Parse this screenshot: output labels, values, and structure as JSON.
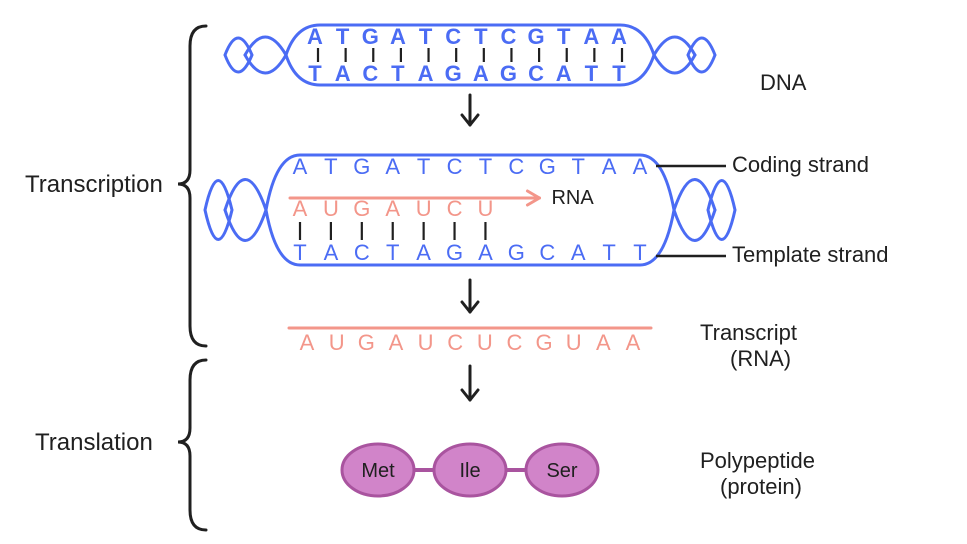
{
  "colors": {
    "dna": "#4b6cf4",
    "rna": "#f3968a",
    "rna_line": "#f3968a",
    "text": "#202020",
    "tick": "#202020",
    "protein_fill": "#d184c9",
    "protein_stroke": "#a9549f",
    "arrow": "#202020",
    "bracket": "#202020"
  },
  "labels": {
    "dna": "DNA",
    "rna": "RNA",
    "coding_strand": "Coding strand",
    "template_strand": "Template strand",
    "transcription": "Transcription",
    "translation": "Translation",
    "transcript_l1": "Transcript",
    "transcript_l2": "(RNA)",
    "polypeptide_l1": "Polypeptide",
    "polypeptide_l2": "(protein)"
  },
  "font_sizes": {
    "label": 22,
    "section": 24,
    "seq": 22,
    "protein": 20
  },
  "dna": {
    "top": "ATGATCTCGTAA",
    "bottom": "TACTAGAGCATT"
  },
  "transcription_middle": {
    "coding": "ATGATCTCGTAA",
    "rna": "AUGAUCU",
    "template": "TACTAGAGCATT"
  },
  "transcript": "AUGAUCUCGUAA",
  "protein": [
    "Met",
    "Ile",
    "Ser"
  ]
}
